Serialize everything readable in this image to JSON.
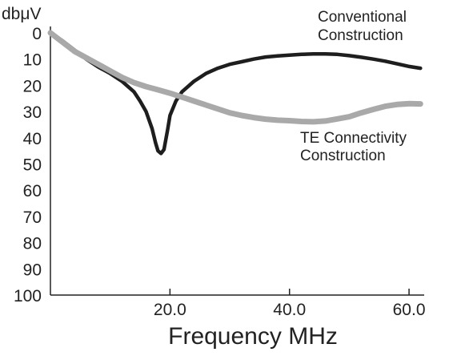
{
  "chart_data": {
    "type": "line",
    "title": "",
    "xlabel": "Frequency MHz",
    "ylabel": "dbμV",
    "xlim": [
      0,
      62
    ],
    "ylim": [
      0,
      100
    ],
    "y_inverted": true,
    "grid": false,
    "x_ticks": [
      {
        "value": 20,
        "label": "20.0"
      },
      {
        "value": 40,
        "label": "40.0"
      },
      {
        "value": 60,
        "label": "60.0"
      }
    ],
    "y_ticks": [
      {
        "value": 0,
        "label": "0"
      },
      {
        "value": 10,
        "label": "10"
      },
      {
        "value": 20,
        "label": "20"
      },
      {
        "value": 30,
        "label": "30"
      },
      {
        "value": 40,
        "label": "40"
      },
      {
        "value": 50,
        "label": "50"
      },
      {
        "value": 60,
        "label": "60"
      },
      {
        "value": 70,
        "label": "70"
      },
      {
        "value": 80,
        "label": "80"
      },
      {
        "value": 90,
        "label": "90"
      },
      {
        "value": 100,
        "label": "100"
      }
    ],
    "series": [
      {
        "name": "Conventional Construction",
        "label_lines": [
          "Conventional",
          "Construction"
        ],
        "color": "#1e1e1e",
        "points": [
          [
            0.0,
            0
          ],
          [
            2,
            3
          ],
          [
            4,
            6.5
          ],
          [
            6,
            10
          ],
          [
            8,
            13
          ],
          [
            10,
            15.5
          ],
          [
            12,
            18.5
          ],
          [
            14,
            22.5
          ],
          [
            15,
            26
          ],
          [
            16,
            30
          ],
          [
            17,
            36.5
          ],
          [
            17.6,
            42
          ],
          [
            18,
            45
          ],
          [
            18.5,
            46
          ],
          [
            19,
            44.5
          ],
          [
            19.6,
            37
          ],
          [
            20,
            31.5
          ],
          [
            21,
            26
          ],
          [
            22,
            22.5
          ],
          [
            24,
            18.5
          ],
          [
            26,
            15.5
          ],
          [
            28,
            13.5
          ],
          [
            30,
            12
          ],
          [
            32,
            11
          ],
          [
            34,
            10
          ],
          [
            36,
            9.2
          ],
          [
            38,
            8.8
          ],
          [
            40,
            8.5
          ],
          [
            42,
            8.2
          ],
          [
            44,
            8
          ],
          [
            46,
            8
          ],
          [
            48,
            8.2
          ],
          [
            50,
            8.7
          ],
          [
            52,
            9.3
          ],
          [
            54,
            10
          ],
          [
            56,
            10.8
          ],
          [
            58,
            11.8
          ],
          [
            60,
            12.8
          ],
          [
            61.9,
            13.5
          ]
        ]
      },
      {
        "name": "TE Connectivity Construction",
        "label_lines": [
          "TE Connectivity",
          "Construction"
        ],
        "color": "#a9a9a9",
        "points": [
          [
            0.0,
            0
          ],
          [
            2,
            3.5
          ],
          [
            4,
            7
          ],
          [
            6,
            9.5
          ],
          [
            8,
            12
          ],
          [
            10,
            14.5
          ],
          [
            12,
            17
          ],
          [
            14,
            19
          ],
          [
            16,
            20.5
          ],
          [
            18,
            21.7
          ],
          [
            20,
            23
          ],
          [
            22,
            24.5
          ],
          [
            24,
            26
          ],
          [
            26,
            27.5
          ],
          [
            28,
            29
          ],
          [
            30,
            30.5
          ],
          [
            32,
            31.5
          ],
          [
            34,
            32.3
          ],
          [
            36,
            32.9
          ],
          [
            38,
            33.3
          ],
          [
            40,
            33.5
          ],
          [
            42,
            33.8
          ],
          [
            44,
            33.9
          ],
          [
            46,
            33.6
          ],
          [
            48,
            32.8
          ],
          [
            50,
            32
          ],
          [
            52,
            30.5
          ],
          [
            54,
            29.2
          ],
          [
            56,
            28
          ],
          [
            58,
            27.3
          ],
          [
            60,
            27
          ],
          [
            61.9,
            27.1
          ]
        ]
      }
    ]
  }
}
